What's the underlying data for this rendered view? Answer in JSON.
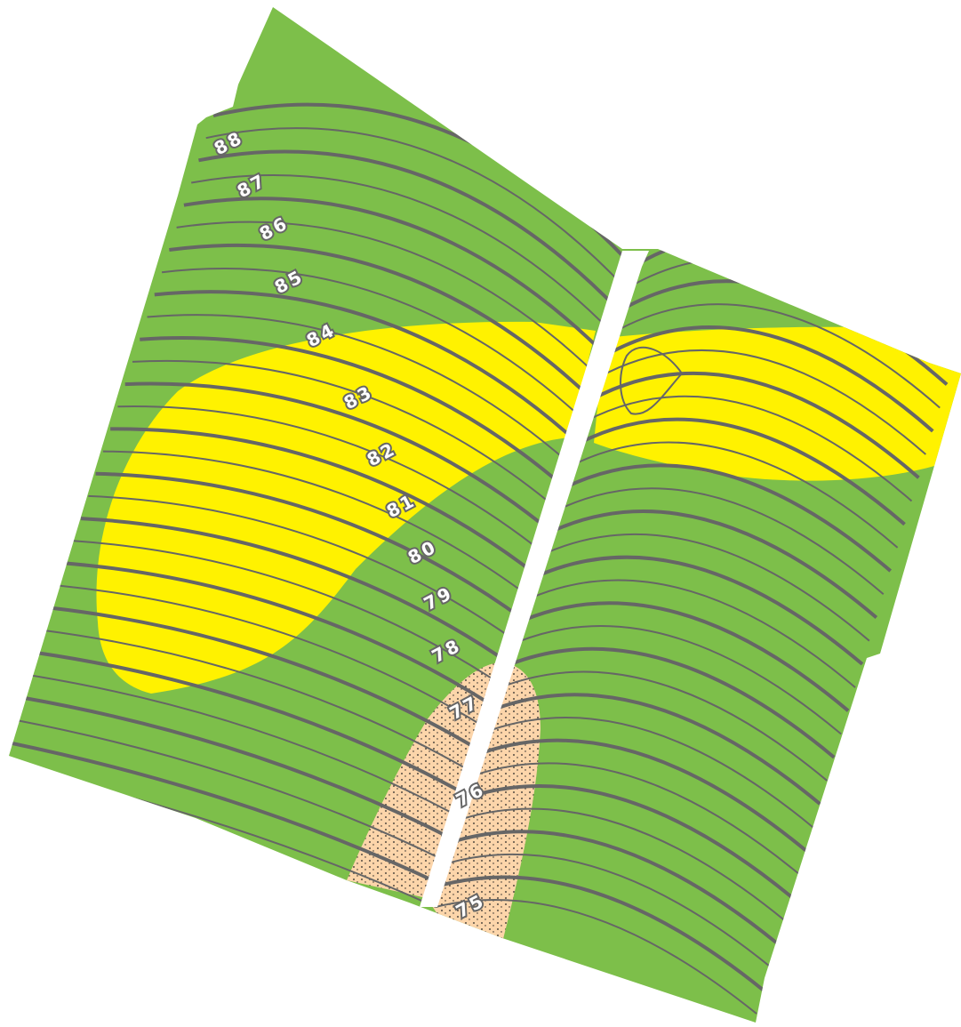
{
  "contour_labels": [
    "88",
    "87",
    "86",
    "85",
    "84",
    "83",
    "82",
    "81",
    "80",
    "79",
    "78",
    "77",
    "76",
    "75"
  ]
}
